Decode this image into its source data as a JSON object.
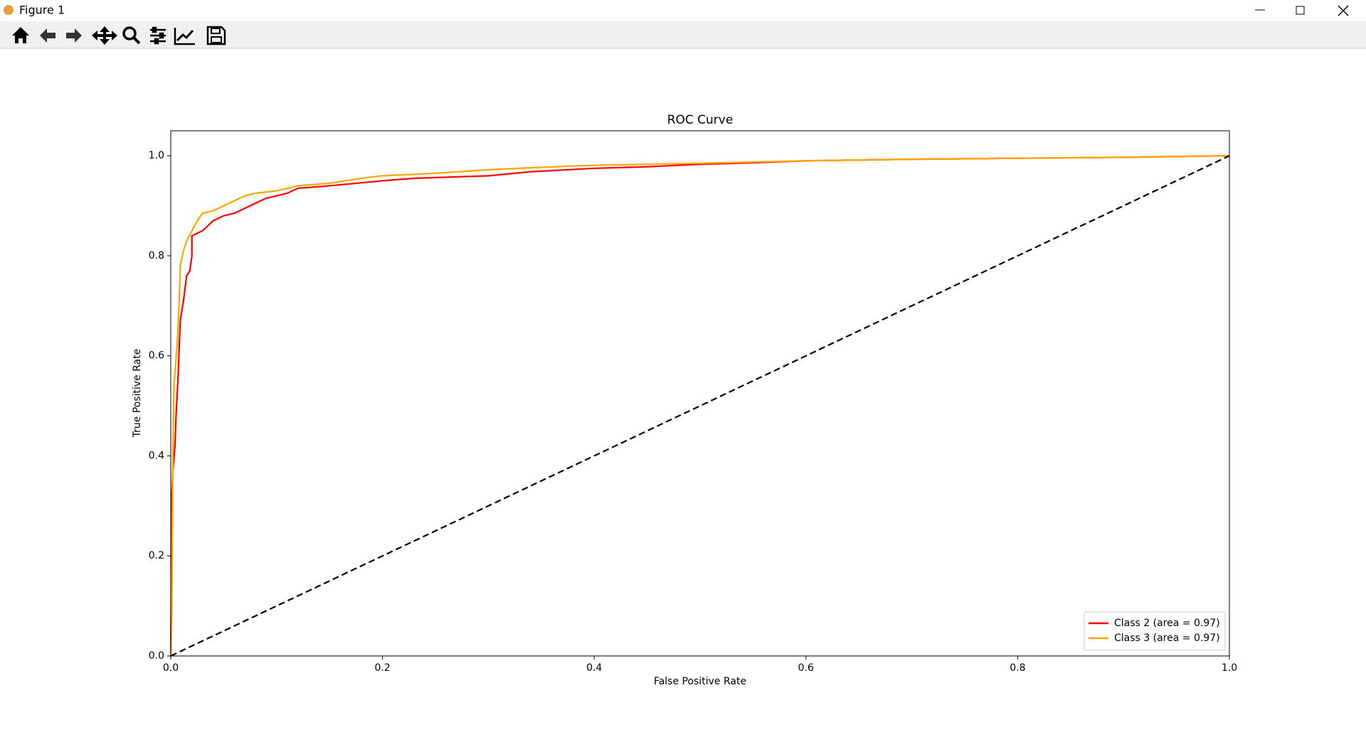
{
  "window": {
    "title": "Figure 1"
  },
  "chart_data": {
    "type": "line",
    "title": "ROC Curve",
    "x_label": "False Positive Rate",
    "y_label": "True Positive Rate",
    "xlim": [
      0,
      1
    ],
    "ylim": [
      0,
      1.05
    ],
    "xticks": [
      {
        "value": 0,
        "label": "0.0"
      },
      0.2,
      0.4,
      0.6,
      0.8,
      {
        "value": 1,
        "label": "1.0"
      }
    ],
    "yticks": [
      {
        "value": 0,
        "label": "0.0"
      },
      0.2,
      0.4,
      0.6,
      0.8,
      {
        "value": 1,
        "label": "1.0"
      }
    ],
    "grid": false,
    "legend": "lower right",
    "series": [
      {
        "name": "Class 2 (area = 0.97)",
        "color": "#ff0000",
        "linestyle": "-",
        "x": [
          0,
          0.001,
          0.002,
          0.004,
          0.005,
          0.007,
          0.008,
          0.009,
          0.012,
          0.015,
          0.018,
          0.02,
          0.02,
          0.03,
          0.04,
          0.05,
          0.06,
          0.07,
          0.08,
          0.09,
          0.11,
          0.12,
          0.15,
          0.2,
          0.23,
          0.3,
          0.34,
          0.4,
          0.45,
          0.5,
          0.55,
          0.6,
          0.7,
          0.8,
          0.9,
          1
        ],
        "values": [
          0,
          0.32,
          0.37,
          0.42,
          0.48,
          0.56,
          0.62,
          0.67,
          0.71,
          0.76,
          0.77,
          0.8,
          0.84,
          0.85,
          0.87,
          0.88,
          0.885,
          0.895,
          0.905,
          0.915,
          0.925,
          0.935,
          0.94,
          0.95,
          0.955,
          0.96,
          0.968,
          0.975,
          0.978,
          0.983,
          0.986,
          0.99,
          0.993,
          0.995,
          0.997,
          1
        ]
      },
      {
        "name": "Class 3 (area = 0.97)",
        "color": "#ffa500",
        "linestyle": "-",
        "x": [
          0,
          0.001,
          0.002,
          0.003,
          0.006,
          0.008,
          0.009,
          0.012,
          0.015,
          0.02,
          0.025,
          0.03,
          0.04,
          0.05,
          0.06,
          0.07,
          0.08,
          0.1,
          0.12,
          0.15,
          0.18,
          0.2,
          0.25,
          0.3,
          0.35,
          0.4,
          0.5,
          0.6,
          0.7,
          0.8,
          0.9,
          1
        ],
        "values": [
          0,
          0.08,
          0.4,
          0.54,
          0.62,
          0.71,
          0.78,
          0.81,
          0.83,
          0.85,
          0.87,
          0.885,
          0.89,
          0.9,
          0.91,
          0.92,
          0.925,
          0.93,
          0.94,
          0.945,
          0.955,
          0.96,
          0.965,
          0.972,
          0.977,
          0.981,
          0.985,
          0.99,
          0.993,
          0.995,
          0.997,
          1
        ]
      },
      {
        "color": "#000000",
        "linestyle": "--",
        "x": [
          0,
          1
        ],
        "values": [
          0,
          1
        ]
      }
    ]
  }
}
